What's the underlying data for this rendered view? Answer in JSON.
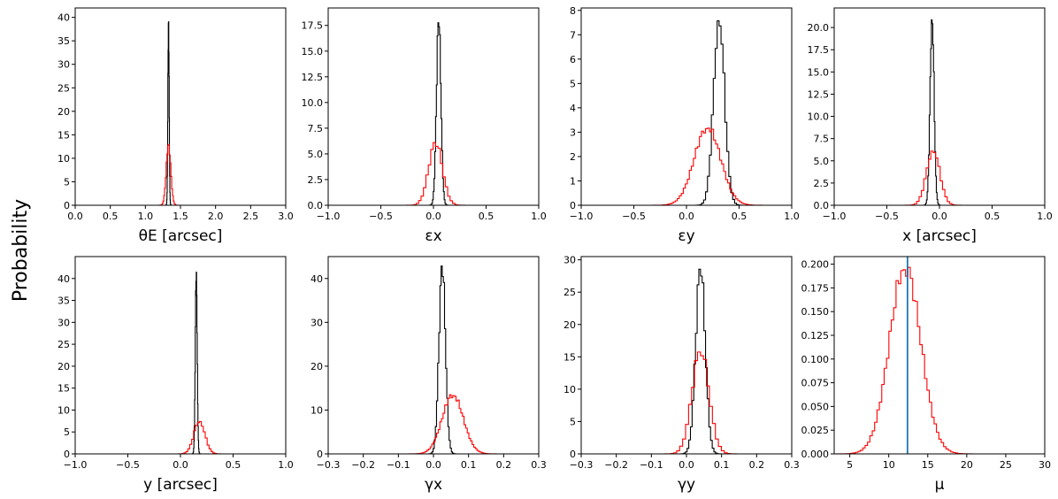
{
  "figure": {
    "ylabel": "Probability"
  },
  "colors": {
    "series_black": "#000000",
    "series_red": "#ff0000",
    "reference_line": "#1f77b4",
    "axes": "#000000"
  },
  "chart_data": [
    {
      "type": "histogram",
      "xlabel": "θE [arcsec]",
      "xlim": [
        0.0,
        3.0
      ],
      "ylim": [
        0,
        42
      ],
      "xticks": [
        0.0,
        0.5,
        1.0,
        1.5,
        2.0,
        2.5,
        3.0
      ],
      "xtick_labels": [
        "0.0",
        "0.5",
        "1.0",
        "1.5",
        "2.0",
        "2.5",
        "3.0"
      ],
      "yticks": [
        0,
        5,
        10,
        15,
        20,
        25,
        30,
        35,
        40
      ],
      "ytick_labels": [
        "0",
        "5",
        "10",
        "15",
        "20",
        "25",
        "30",
        "35",
        "40"
      ],
      "series": [
        {
          "color": "#000000",
          "peak_x": 1.33,
          "peak_y": 39.5,
          "sigma": 0.009
        },
        {
          "color": "#ff0000",
          "peak_x": 1.33,
          "peak_y": 13.0,
          "sigma": 0.032
        }
      ]
    },
    {
      "type": "histogram",
      "xlabel": "εx",
      "xlim": [
        -1.0,
        1.0
      ],
      "ylim": [
        0,
        19.2
      ],
      "xticks": [
        -1.0,
        -0.5,
        0.0,
        0.5,
        1.0
      ],
      "xtick_labels": [
        "−1.0",
        "−0.5",
        "0.0",
        "0.5",
        "1.0"
      ],
      "yticks": [
        0.0,
        2.5,
        5.0,
        7.5,
        10.0,
        12.5,
        15.0,
        17.5
      ],
      "ytick_labels": [
        "0.0",
        "2.5",
        "5.0",
        "7.5",
        "10.0",
        "12.5",
        "15.0",
        "17.5"
      ],
      "series": [
        {
          "color": "#000000",
          "peak_x": 0.05,
          "peak_y": 18.2,
          "sigma": 0.021
        },
        {
          "color": "#ff0000",
          "peak_x": 0.02,
          "peak_y": 6.1,
          "sigma": 0.065
        }
      ]
    },
    {
      "type": "histogram",
      "xlabel": "εy",
      "xlim": [
        -1.0,
        1.0
      ],
      "ylim": [
        0,
        8.1
      ],
      "xticks": [
        -1.0,
        -0.5,
        0.0,
        0.5,
        1.0
      ],
      "xtick_labels": [
        "−1.0",
        "−0.5",
        "0.0",
        "0.5",
        "1.0"
      ],
      "yticks": [
        0,
        1,
        2,
        3,
        4,
        5,
        6,
        7,
        8
      ],
      "ytick_labels": [
        "0",
        "1",
        "2",
        "3",
        "4",
        "5",
        "6",
        "7",
        "8"
      ],
      "series": [
        {
          "color": "#000000",
          "peak_x": 0.31,
          "peak_y": 7.7,
          "sigma": 0.052
        },
        {
          "color": "#ff0000",
          "peak_x": 0.2,
          "peak_y": 3.2,
          "sigma": 0.125
        }
      ]
    },
    {
      "type": "histogram",
      "xlabel": "x [arcsec]",
      "xlim": [
        -1.0,
        1.0
      ],
      "ylim": [
        0,
        22.2
      ],
      "xticks": [
        -1.0,
        -0.5,
        0.0,
        0.5,
        1.0
      ],
      "xtick_labels": [
        "−1.0",
        "−0.5",
        "0.0",
        "0.5",
        "1.0"
      ],
      "yticks": [
        0.0,
        2.5,
        5.0,
        7.5,
        10.0,
        12.5,
        15.0,
        17.5,
        20.0
      ],
      "ytick_labels": [
        "0.0",
        "2.5",
        "5.0",
        "7.5",
        "10.0",
        "12.5",
        "15.0",
        "17.5",
        "20.0"
      ],
      "series": [
        {
          "color": "#000000",
          "peak_x": -0.07,
          "peak_y": 21.2,
          "sigma": 0.019
        },
        {
          "color": "#ff0000",
          "peak_x": -0.06,
          "peak_y": 6.2,
          "sigma": 0.063
        }
      ]
    },
    {
      "type": "histogram",
      "xlabel": "y [arcsec]",
      "xlim": [
        -1.0,
        1.0
      ],
      "ylim": [
        0,
        45
      ],
      "xticks": [
        -1.0,
        -0.5,
        0.0,
        0.5,
        1.0
      ],
      "xtick_labels": [
        "−1.0",
        "−0.5",
        "0.0",
        "0.5",
        "1.0"
      ],
      "yticks": [
        0,
        5,
        10,
        15,
        20,
        25,
        30,
        35,
        40
      ],
      "ytick_labels": [
        "0",
        "5",
        "10",
        "15",
        "20",
        "25",
        "30",
        "35",
        "40"
      ],
      "series": [
        {
          "color": "#000000",
          "peak_x": 0.15,
          "peak_y": 42.0,
          "sigma": 0.009
        },
        {
          "color": "#ff0000",
          "peak_x": 0.18,
          "peak_y": 7.5,
          "sigma": 0.052
        }
      ]
    },
    {
      "type": "histogram",
      "xlabel": "γx",
      "xlim": [
        -0.3,
        0.3
      ],
      "ylim": [
        0,
        45
      ],
      "xticks": [
        -0.3,
        -0.2,
        -0.1,
        0.0,
        0.1,
        0.2,
        0.3
      ],
      "xtick_labels": [
        "−0.3",
        "−0.2",
        "−0.1",
        "0.0",
        "0.1",
        "0.2",
        "0.3"
      ],
      "yticks": [
        0,
        10,
        20,
        30,
        40
      ],
      "ytick_labels": [
        "0",
        "10",
        "20",
        "30",
        "40"
      ],
      "series": [
        {
          "color": "#000000",
          "peak_x": 0.025,
          "peak_y": 43.0,
          "sigma": 0.0092
        },
        {
          "color": "#ff0000",
          "peak_x": 0.055,
          "peak_y": 13.5,
          "sigma": 0.03
        }
      ]
    },
    {
      "type": "histogram",
      "xlabel": "γy",
      "xlim": [
        -0.3,
        0.3
      ],
      "ylim": [
        0,
        30.5
      ],
      "xticks": [
        -0.3,
        -0.2,
        -0.1,
        0.0,
        0.1,
        0.2,
        0.3
      ],
      "xtick_labels": [
        "−0.3",
        "−0.2",
        "−0.1",
        "0.0",
        "0.1",
        "0.2",
        "0.3"
      ],
      "yticks": [
        0,
        5,
        10,
        15,
        20,
        25,
        30
      ],
      "ytick_labels": [
        "0",
        "5",
        "10",
        "15",
        "20",
        "25",
        "30"
      ],
      "series": [
        {
          "color": "#000000",
          "peak_x": 0.04,
          "peak_y": 29.0,
          "sigma": 0.0135
        },
        {
          "color": "#ff0000",
          "peak_x": 0.04,
          "peak_y": 16.0,
          "sigma": 0.024
        }
      ]
    },
    {
      "type": "histogram",
      "xlabel": "μ",
      "xlim": [
        3.0,
        30.0
      ],
      "ylim": [
        0,
        0.208
      ],
      "xticks": [
        5,
        10,
        15,
        20,
        25,
        30
      ],
      "xtick_labels": [
        "5",
        "10",
        "15",
        "20",
        "25",
        "30"
      ],
      "yticks": [
        0.0,
        0.025,
        0.05,
        0.075,
        0.1,
        0.125,
        0.15,
        0.175,
        0.2
      ],
      "ytick_labels": [
        "0.000",
        "0.025",
        "0.050",
        "0.075",
        "0.100",
        "0.125",
        "0.150",
        "0.175",
        "0.200"
      ],
      "reference_line_x": 12.4,
      "series": [
        {
          "color": "#ff0000",
          "peak_x": 12.1,
          "peak_y": 0.198,
          "sigma": 2.0
        }
      ]
    }
  ]
}
